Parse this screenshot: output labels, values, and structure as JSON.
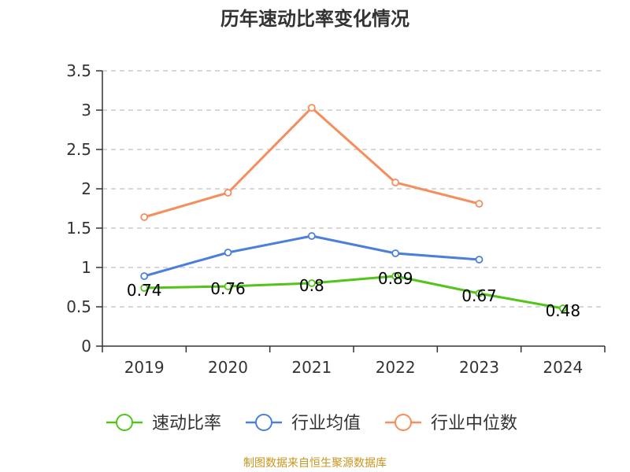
{
  "chart_data": {
    "type": "line",
    "title": "历年速动比率变化情况",
    "categories": [
      "2019",
      "2020",
      "2021",
      "2022",
      "2023",
      "2024"
    ],
    "y_ticks": [
      "0",
      "0.5",
      "1",
      "1.5",
      "2",
      "2.5",
      "3",
      "3.5"
    ],
    "ylim": [
      0,
      3.5
    ],
    "grid": true,
    "legend_position": "bottom-center",
    "series": [
      {
        "name": "速动比率",
        "color": "#52c41a",
        "values": [
          0.74,
          0.76,
          0.8,
          0.89,
          0.67,
          0.48
        ],
        "data_labels": [
          "0.74",
          "0.76",
          "0.8",
          "0.89",
          "0.67",
          "0.48"
        ]
      },
      {
        "name": "行业均值",
        "color": "#4a7fdb",
        "values": [
          0.89,
          1.19,
          1.4,
          1.18,
          1.1,
          null
        ]
      },
      {
        "name": "行业中位数",
        "color": "#f58d5c",
        "values": [
          1.64,
          1.95,
          3.03,
          2.08,
          1.81,
          null
        ]
      }
    ]
  },
  "footer": {
    "source": "制图数据来自恒生聚源数据库"
  }
}
